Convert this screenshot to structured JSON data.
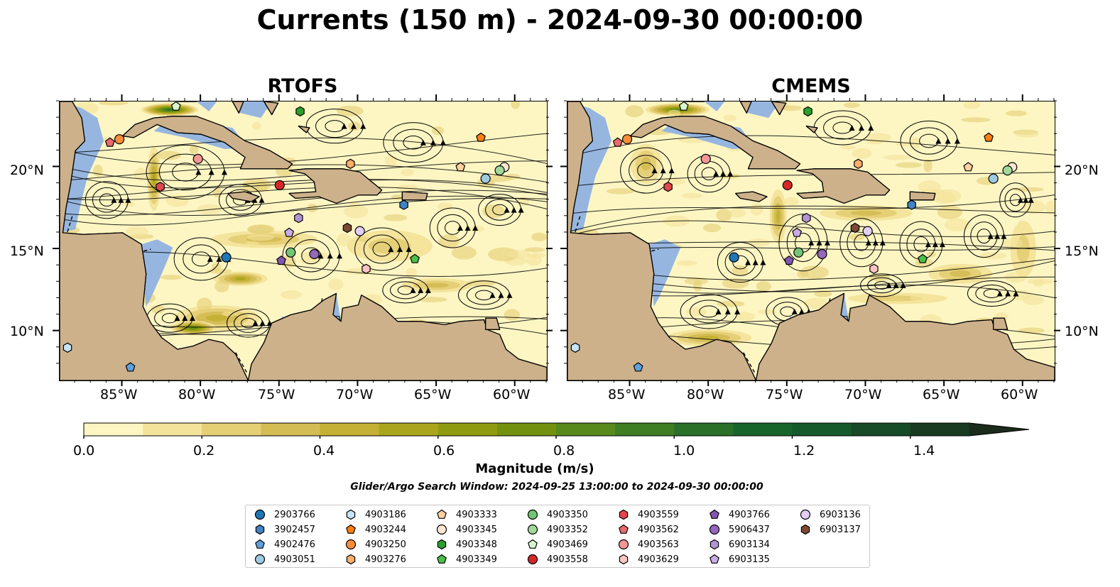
{
  "title": "Currents (150 m) - 2024-09-30 00:00:00",
  "panels": [
    {
      "title": "RTOFS"
    },
    {
      "title": "CMEMS"
    }
  ],
  "lon_ticks": [
    "85°W",
    "80°W",
    "75°W",
    "70°W",
    "65°W",
    "60°W"
  ],
  "lat_ticks": [
    "20°N",
    "15°N",
    "10°N"
  ],
  "colorbar": {
    "label": "Magnitude (m/s)",
    "ticks": [
      "0.0",
      "0.2",
      "0.4",
      "0.6",
      "0.8",
      "1.0",
      "1.2",
      "1.4"
    ],
    "colors": [
      "#fdf6c3",
      "#f3e39a",
      "#e4cf75",
      "#d4bc55",
      "#c4b034",
      "#aaa51d",
      "#8f9c12",
      "#72920f",
      "#578a1b",
      "#3f7e22",
      "#2a7029",
      "#18652c",
      "#145a2b",
      "#174a27",
      "#193b22",
      "#1a2b1b"
    ]
  },
  "search_window": "Glider/Argo Search Window: 2024-09-25 13:00:00 to 2024-09-30 00:00:00",
  "legend": [
    {
      "label": "2903766",
      "shape": "circle",
      "color": "#1f77b4"
    },
    {
      "label": "3902457",
      "shape": "hexagon",
      "color": "#4183c4"
    },
    {
      "label": "4902476",
      "shape": "pentagon",
      "color": "#5da2dd"
    },
    {
      "label": "4903051",
      "shape": "circle",
      "color": "#9ecae1"
    },
    {
      "label": "4903186",
      "shape": "hexagon",
      "color": "#c6e4f5"
    },
    {
      "label": "4903244",
      "shape": "pentagon",
      "color": "#ff7f0e"
    },
    {
      "label": "4903250",
      "shape": "circle",
      "color": "#fd8d3c"
    },
    {
      "label": "4903276",
      "shape": "hexagon",
      "color": "#fdae6b"
    },
    {
      "label": "4903333",
      "shape": "pentagon",
      "color": "#fdd0a2"
    },
    {
      "label": "4903345",
      "shape": "circle",
      "color": "#fee6ce"
    },
    {
      "label": "4903348",
      "shape": "hexagon",
      "color": "#2ca02c"
    },
    {
      "label": "4903349",
      "shape": "pentagon",
      "color": "#4bbf4b"
    },
    {
      "label": "4903350",
      "shape": "circle",
      "color": "#74c476"
    },
    {
      "label": "4903352",
      "shape": "circle",
      "color": "#a1d99b"
    },
    {
      "label": "4903469",
      "shape": "pentagon",
      "color": "#d9f5d0"
    },
    {
      "label": "4903558",
      "shape": "circle",
      "color": "#d62728"
    },
    {
      "label": "4903559",
      "shape": "hexagon",
      "color": "#e0474c"
    },
    {
      "label": "4903562",
      "shape": "pentagon",
      "color": "#ea6b6e"
    },
    {
      "label": "4903563",
      "shape": "circle",
      "color": "#f29595"
    },
    {
      "label": "4903629",
      "shape": "hexagon",
      "color": "#fbc4c4"
    },
    {
      "label": "4903766",
      "shape": "pentagon",
      "color": "#8256b0"
    },
    {
      "label": "5906437",
      "shape": "circle",
      "color": "#9467bd"
    },
    {
      "label": "6903134",
      "shape": "hexagon",
      "color": "#b294d4"
    },
    {
      "label": "6903135",
      "shape": "pentagon",
      "color": "#c9ace5"
    },
    {
      "label": "6903136",
      "shape": "circle",
      "color": "#e3cff5"
    },
    {
      "label": "6903137",
      "shape": "hexagon",
      "color": "#7b4a33"
    }
  ],
  "markers": {
    "RTOFS": [
      {
        "id": "4903562",
        "lon": -85.8,
        "lat": 21.5
      },
      {
        "id": "4903250",
        "lon": -85.2,
        "lat": 21.7
      },
      {
        "id": "4903469",
        "lon": -81.6,
        "lat": 23.7
      },
      {
        "id": "4903348",
        "lon": -73.7,
        "lat": 23.4
      },
      {
        "id": "4903244",
        "lon": -62.2,
        "lat": 21.8
      },
      {
        "id": "4903563",
        "lon": -80.2,
        "lat": 20.5
      },
      {
        "id": "4903276",
        "lon": -70.5,
        "lat": 20.2
      },
      {
        "id": "4903333",
        "lon": -63.5,
        "lat": 20.0
      },
      {
        "id": "4903345",
        "lon": -60.7,
        "lat": 20.0
      },
      {
        "id": "4903352",
        "lon": -61.0,
        "lat": 19.8
      },
      {
        "id": "4903051",
        "lon": -61.9,
        "lat": 19.3
      },
      {
        "id": "4903559",
        "lon": -82.6,
        "lat": 18.8
      },
      {
        "id": "4903558",
        "lon": -75.0,
        "lat": 18.9
      },
      {
        "id": "3902457",
        "lon": -67.1,
        "lat": 17.7
      },
      {
        "id": "6903134",
        "lon": -73.8,
        "lat": 16.9
      },
      {
        "id": "6903135",
        "lon": -74.4,
        "lat": 16.0
      },
      {
        "id": "6903137",
        "lon": -70.7,
        "lat": 16.3
      },
      {
        "id": "6903136",
        "lon": -69.9,
        "lat": 16.1
      },
      {
        "id": "4903350",
        "lon": -74.3,
        "lat": 14.8
      },
      {
        "id": "5906437",
        "lon": -72.8,
        "lat": 14.7
      },
      {
        "id": "2903766",
        "lon": -78.4,
        "lat": 14.5
      },
      {
        "id": "4903766",
        "lon": -74.9,
        "lat": 14.3
      },
      {
        "id": "4903349",
        "lon": -66.4,
        "lat": 14.4
      },
      {
        "id": "4903629",
        "lon": -69.5,
        "lat": 13.8
      },
      {
        "id": "4903186",
        "lon": -88.5,
        "lat": 9.0
      },
      {
        "id": "4902476",
        "lon": -84.5,
        "lat": 7.8
      }
    ],
    "CMEMS": [
      {
        "id": "4903562",
        "lon": -85.8,
        "lat": 21.5
      },
      {
        "id": "4903250",
        "lon": -85.2,
        "lat": 21.7
      },
      {
        "id": "4903469",
        "lon": -81.6,
        "lat": 23.7
      },
      {
        "id": "4903348",
        "lon": -73.7,
        "lat": 23.4
      },
      {
        "id": "4903244",
        "lon": -62.2,
        "lat": 21.8
      },
      {
        "id": "4903563",
        "lon": -80.2,
        "lat": 20.5
      },
      {
        "id": "4903276",
        "lon": -70.5,
        "lat": 20.2
      },
      {
        "id": "4903333",
        "lon": -63.5,
        "lat": 20.0
      },
      {
        "id": "4903345",
        "lon": -60.7,
        "lat": 20.0
      },
      {
        "id": "4903352",
        "lon": -61.0,
        "lat": 19.8
      },
      {
        "id": "4903051",
        "lon": -61.9,
        "lat": 19.3
      },
      {
        "id": "4903559",
        "lon": -82.6,
        "lat": 18.8
      },
      {
        "id": "4903558",
        "lon": -75.0,
        "lat": 18.9
      },
      {
        "id": "3902457",
        "lon": -67.1,
        "lat": 17.7
      },
      {
        "id": "6903134",
        "lon": -73.8,
        "lat": 16.9
      },
      {
        "id": "6903135",
        "lon": -74.4,
        "lat": 16.0
      },
      {
        "id": "6903137",
        "lon": -70.7,
        "lat": 16.3
      },
      {
        "id": "6903136",
        "lon": -69.9,
        "lat": 16.1
      },
      {
        "id": "4903350",
        "lon": -74.3,
        "lat": 14.8
      },
      {
        "id": "5906437",
        "lon": -72.8,
        "lat": 14.7
      },
      {
        "id": "2903766",
        "lon": -78.4,
        "lat": 14.5
      },
      {
        "id": "4903766",
        "lon": -74.9,
        "lat": 14.3
      },
      {
        "id": "4903349",
        "lon": -66.4,
        "lat": 14.4
      },
      {
        "id": "4903629",
        "lon": -69.5,
        "lat": 13.8
      },
      {
        "id": "4903186",
        "lon": -88.5,
        "lat": 9.0
      },
      {
        "id": "4902476",
        "lon": -84.5,
        "lat": 7.8
      }
    ]
  }
}
